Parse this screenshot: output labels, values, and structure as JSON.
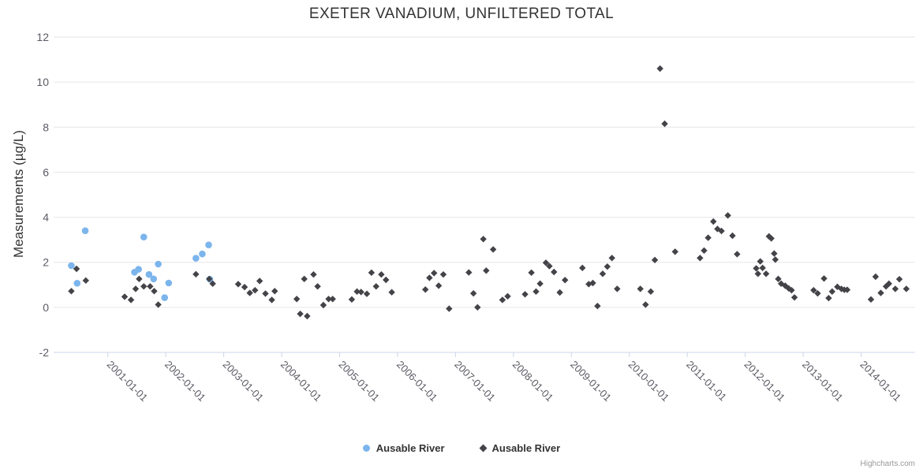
{
  "credits": "Highcharts.com",
  "chart_data": {
    "type": "scatter",
    "title": "EXETER VANADIUM, UNFILTERED TOTAL",
    "xlabel": "",
    "ylabel": "Measurements (µg/L)",
    "ylim": [
      -2,
      12
    ],
    "yticks": [
      -2,
      0,
      2,
      4,
      6,
      8,
      10,
      12
    ],
    "xlim": [
      2000.06,
      2014.93
    ],
    "x_unit": "decimal-year",
    "xticks": [
      2001,
      2002,
      2003,
      2004,
      2005,
      2006,
      2007,
      2008,
      2009,
      2010,
      2011,
      2012,
      2013,
      2014
    ],
    "xtick_labels": [
      "2001-01-01",
      "2002-01-01",
      "2003-01-01",
      "2004-01-01",
      "2005-01-01",
      "2006-01-01",
      "2007-01-01",
      "2008-01-01",
      "2009-01-01",
      "2010-01-01",
      "2011-01-01",
      "2012-01-01",
      "2013-01-01",
      "2014-01-01"
    ],
    "xtick_label_rotation": 45,
    "grid": "horizontal",
    "legend_position": "bottom-center",
    "colors": {
      "grid": "#e6e6e6",
      "axis_line": "#ccd6eb",
      "tick_label": "#5a5a64",
      "title": "#333333"
    },
    "series": [
      {
        "name": "Ausable River",
        "marker": "circle",
        "color": "#7cb5ec",
        "points": [
          [
            2000.37,
            1.85
          ],
          [
            2000.47,
            1.07
          ],
          [
            2000.61,
            3.4
          ],
          [
            2001.46,
            1.56
          ],
          [
            2001.53,
            1.69
          ],
          [
            2001.62,
            3.12
          ],
          [
            2001.71,
            1.46
          ],
          [
            2001.79,
            1.26
          ],
          [
            2001.87,
            1.92
          ],
          [
            2001.98,
            0.43
          ],
          [
            2002.05,
            1.08
          ],
          [
            2002.52,
            2.18
          ],
          [
            2002.63,
            2.37
          ],
          [
            2002.74,
            2.77
          ],
          [
            2002.76,
            1.25
          ]
        ]
      },
      {
        "name": "Ausable River",
        "marker": "diamond",
        "color": "#434348",
        "points": [
          [
            2000.37,
            0.72
          ],
          [
            2000.46,
            1.71
          ],
          [
            2000.62,
            1.19
          ],
          [
            2001.29,
            0.47
          ],
          [
            2001.4,
            0.33
          ],
          [
            2001.48,
            0.82
          ],
          [
            2001.54,
            1.26
          ],
          [
            2001.62,
            0.93
          ],
          [
            2001.73,
            0.93
          ],
          [
            2001.8,
            0.72
          ],
          [
            2001.87,
            0.12
          ],
          [
            2002.52,
            1.47
          ],
          [
            2002.75,
            1.26
          ],
          [
            2002.81,
            1.05
          ],
          [
            2003.25,
            1.03
          ],
          [
            2003.36,
            0.9
          ],
          [
            2003.45,
            0.64
          ],
          [
            2003.54,
            0.76
          ],
          [
            2003.62,
            1.17
          ],
          [
            2003.72,
            0.61
          ],
          [
            2003.83,
            0.33
          ],
          [
            2003.88,
            0.72
          ],
          [
            2004.26,
            0.37
          ],
          [
            2004.32,
            -0.29
          ],
          [
            2004.39,
            1.26
          ],
          [
            2004.44,
            -0.39
          ],
          [
            2004.55,
            1.46
          ],
          [
            2004.62,
            0.93
          ],
          [
            2004.72,
            0.1
          ],
          [
            2004.81,
            0.37
          ],
          [
            2004.88,
            0.37
          ],
          [
            2005.21,
            0.35
          ],
          [
            2005.3,
            0.7
          ],
          [
            2005.37,
            0.68
          ],
          [
            2005.47,
            0.6
          ],
          [
            2005.55,
            1.54
          ],
          [
            2005.63,
            0.93
          ],
          [
            2005.72,
            1.46
          ],
          [
            2005.8,
            1.22
          ],
          [
            2005.9,
            0.67
          ],
          [
            2006.48,
            0.79
          ],
          [
            2006.55,
            1.31
          ],
          [
            2006.63,
            1.52
          ],
          [
            2006.71,
            0.96
          ],
          [
            2006.79,
            1.46
          ],
          [
            2006.89,
            -0.06
          ],
          [
            2007.23,
            1.55
          ],
          [
            2007.31,
            0.62
          ],
          [
            2007.38,
            0.0
          ],
          [
            2007.48,
            3.03
          ],
          [
            2007.53,
            1.63
          ],
          [
            2007.65,
            2.57
          ],
          [
            2007.81,
            0.33
          ],
          [
            2007.9,
            0.49
          ],
          [
            2008.2,
            0.58
          ],
          [
            2008.31,
            1.54
          ],
          [
            2008.39,
            0.7
          ],
          [
            2008.46,
            1.05
          ],
          [
            2008.56,
            1.98
          ],
          [
            2008.62,
            1.83
          ],
          [
            2008.7,
            1.57
          ],
          [
            2008.8,
            0.66
          ],
          [
            2008.89,
            1.21
          ],
          [
            2009.19,
            1.75
          ],
          [
            2009.3,
            1.03
          ],
          [
            2009.37,
            1.08
          ],
          [
            2009.45,
            0.06
          ],
          [
            2009.54,
            1.49
          ],
          [
            2009.62,
            1.81
          ],
          [
            2009.7,
            2.19
          ],
          [
            2009.79,
            0.82
          ],
          [
            2010.19,
            0.82
          ],
          [
            2010.28,
            0.12
          ],
          [
            2010.37,
            0.7
          ],
          [
            2010.44,
            2.1
          ],
          [
            2010.53,
            10.6
          ],
          [
            2010.61,
            8.15
          ],
          [
            2010.79,
            2.47
          ],
          [
            2011.22,
            2.19
          ],
          [
            2011.29,
            2.52
          ],
          [
            2011.36,
            3.09
          ],
          [
            2011.45,
            3.81
          ],
          [
            2011.52,
            3.48
          ],
          [
            2011.59,
            3.39
          ],
          [
            2011.7,
            4.08
          ],
          [
            2011.78,
            3.18
          ],
          [
            2011.86,
            2.36
          ],
          [
            2012.19,
            1.73
          ],
          [
            2012.22,
            1.49
          ],
          [
            2012.26,
            2.04
          ],
          [
            2012.3,
            1.75
          ],
          [
            2012.36,
            1.49
          ],
          [
            2012.41,
            3.15
          ],
          [
            2012.45,
            3.06
          ],
          [
            2012.5,
            2.39
          ],
          [
            2012.52,
            2.12
          ],
          [
            2012.57,
            1.26
          ],
          [
            2012.62,
            1.05
          ],
          [
            2012.69,
            0.96
          ],
          [
            2012.75,
            0.84
          ],
          [
            2012.8,
            0.76
          ],
          [
            2012.85,
            0.44
          ],
          [
            2013.18,
            0.76
          ],
          [
            2013.25,
            0.62
          ],
          [
            2013.36,
            1.28
          ],
          [
            2013.44,
            0.41
          ],
          [
            2013.5,
            0.7
          ],
          [
            2013.59,
            0.91
          ],
          [
            2013.66,
            0.82
          ],
          [
            2013.71,
            0.78
          ],
          [
            2013.76,
            0.78
          ],
          [
            2014.17,
            0.35
          ],
          [
            2014.25,
            1.36
          ],
          [
            2014.34,
            0.64
          ],
          [
            2014.43,
            0.93
          ],
          [
            2014.48,
            1.05
          ],
          [
            2014.59,
            0.82
          ],
          [
            2014.66,
            1.25
          ],
          [
            2014.78,
            0.82
          ]
        ]
      }
    ]
  }
}
